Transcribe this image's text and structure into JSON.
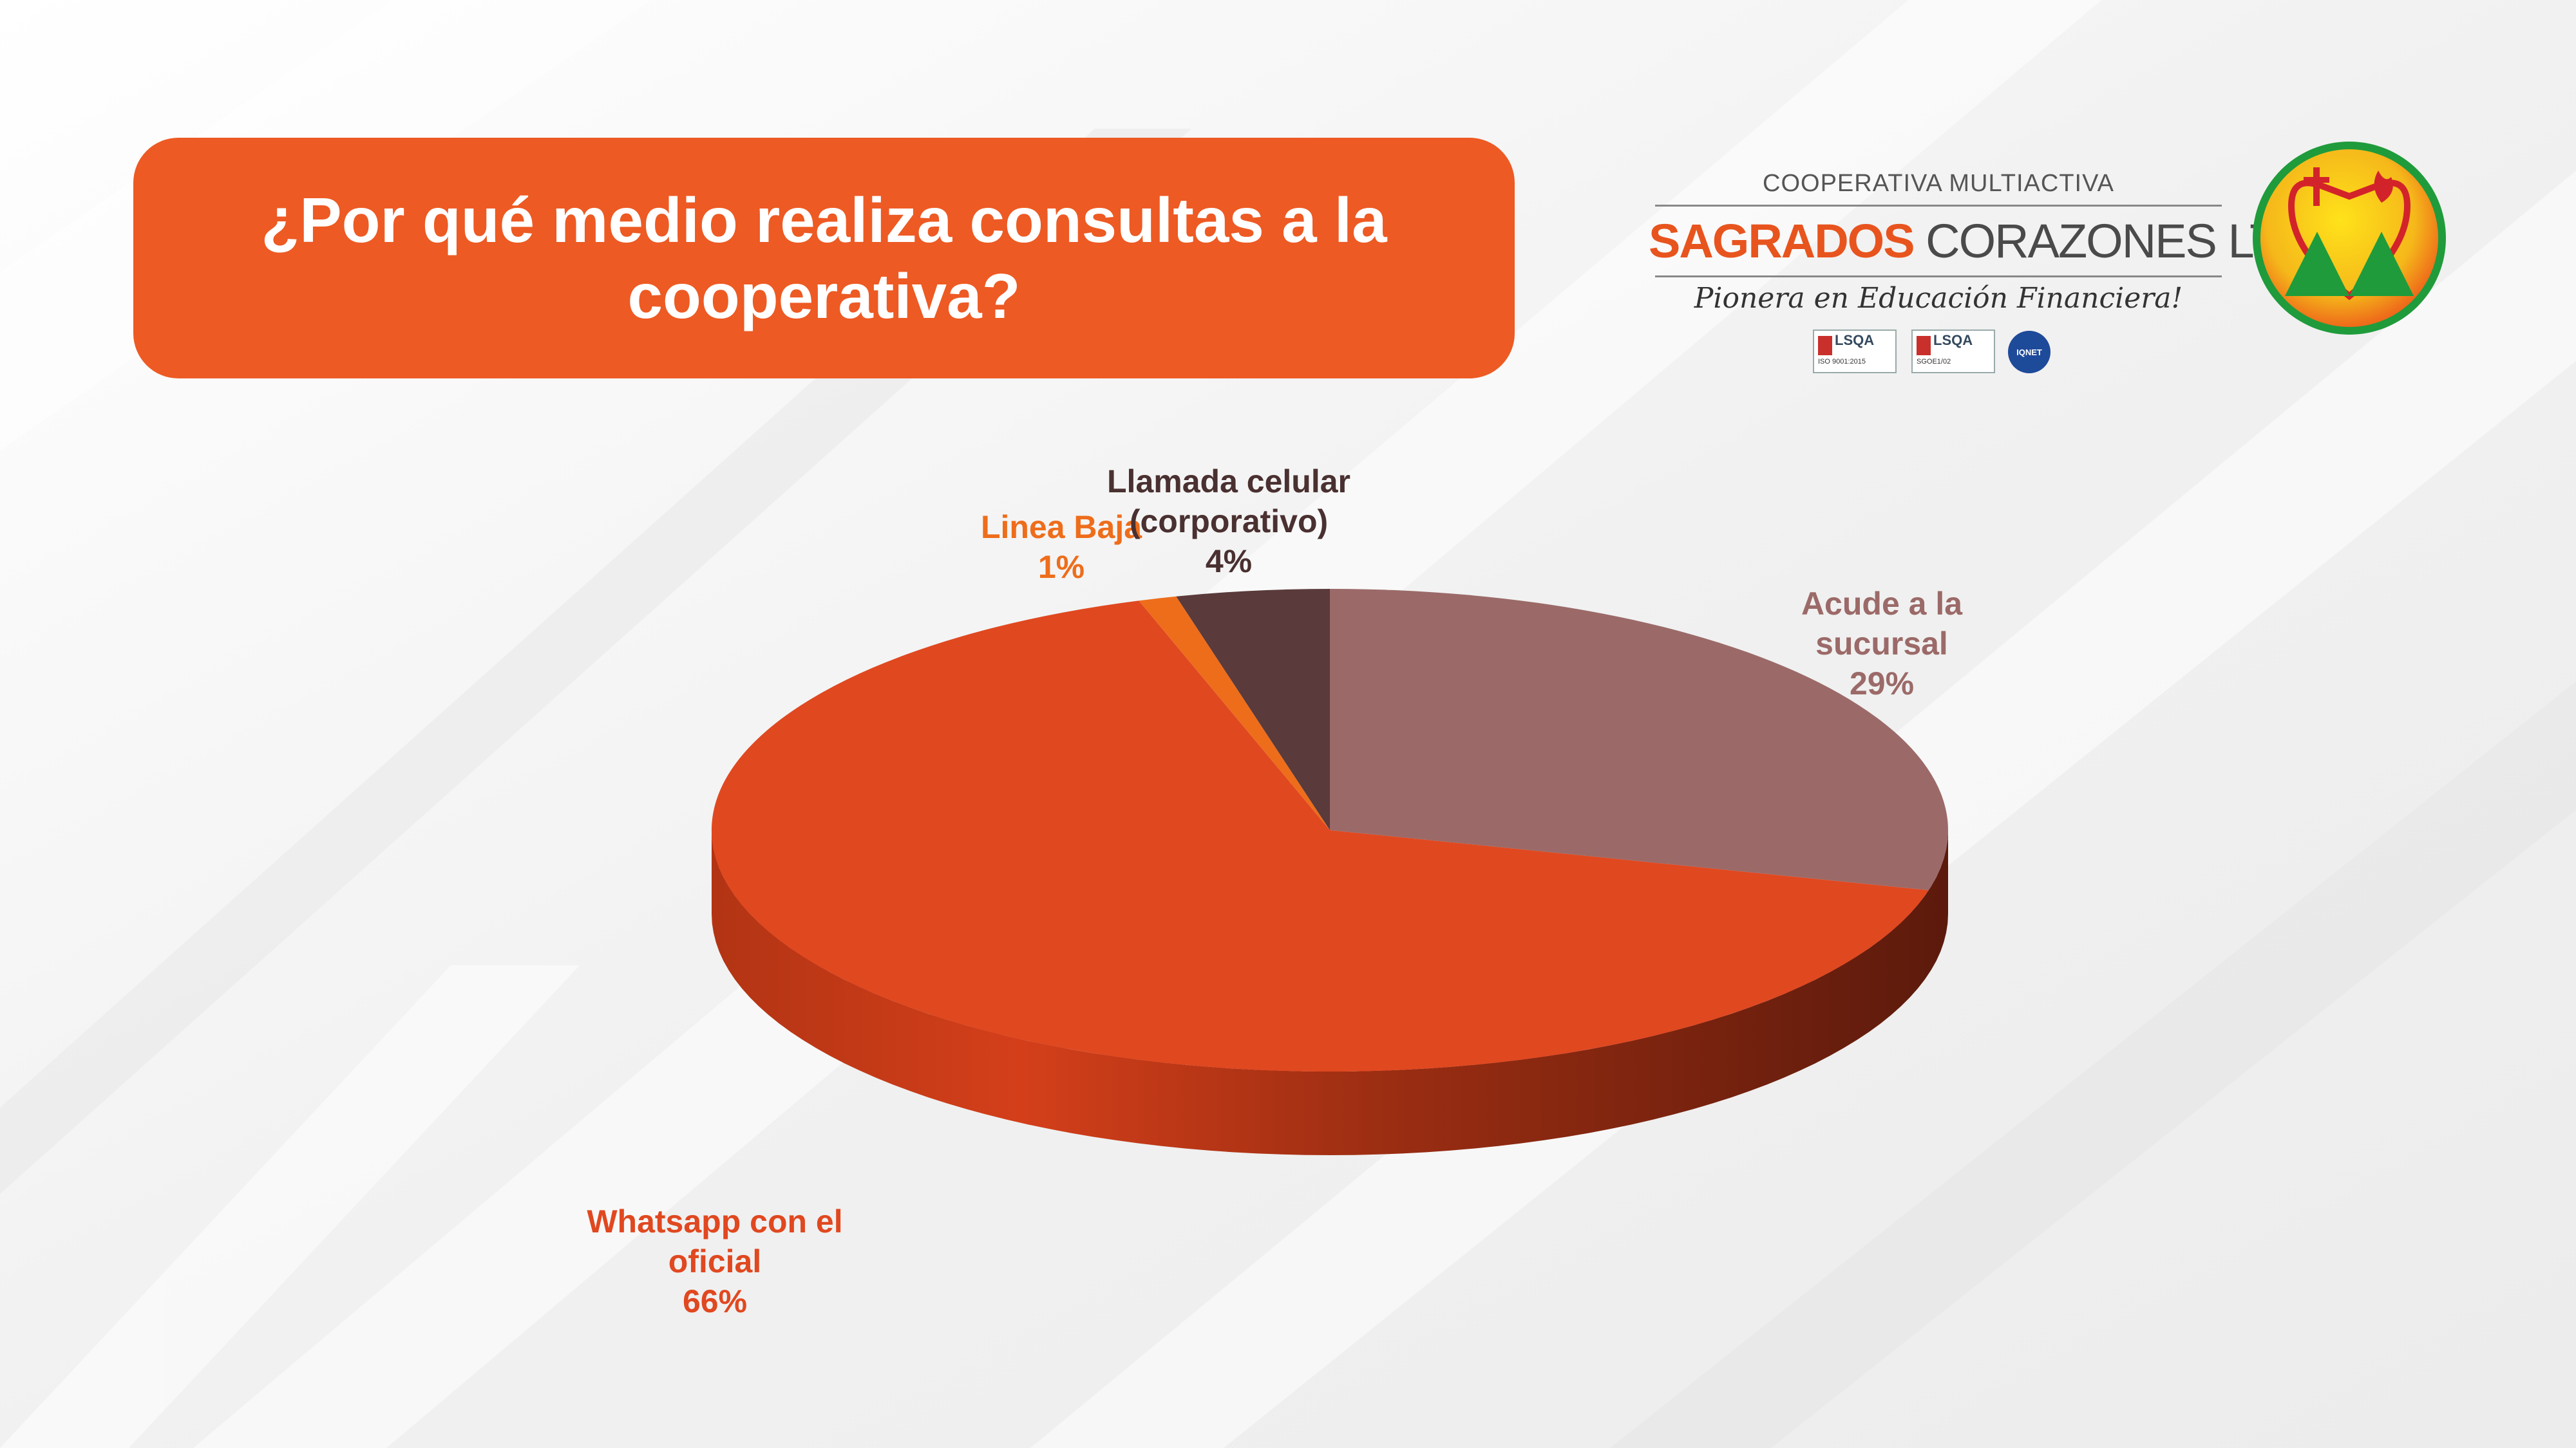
{
  "title": "¿Por qué medio realiza consultas a la cooperativa?",
  "logo": {
    "kicker": "COOPERATIVA MULTIACTIVA",
    "name_part1": "SAGRADOS",
    "name_part2": "CORAZONES LTDA.",
    "motto": "Pionera en Educación Financiera!",
    "cert1": {
      "brand": "LSQA",
      "code": "ISO 9001:2015"
    },
    "cert2": {
      "brand": "LSQA",
      "code": "SGOE1/02"
    },
    "network": "IQNET"
  },
  "colors": {
    "title_bg": "#ed5a23",
    "whatsapp": "#e04820",
    "sucursal": "#9b6a68",
    "celular": "#5a3a3a",
    "linea_baja": "#ee6d1b"
  },
  "chart_data": {
    "type": "pie",
    "title": "¿Por qué medio realiza consultas a la cooperativa?",
    "style": "3d",
    "slices": [
      {
        "label": "Acude a la sucursal",
        "value": 29,
        "display": "29%",
        "color": "#9b6a68"
      },
      {
        "label": "Whatsapp con el oficial",
        "value": 66,
        "display": "66%",
        "color": "#e04820"
      },
      {
        "label": "Linea Baja",
        "value": 1,
        "display": "1%",
        "color": "#ee6d1b"
      },
      {
        "label": "Llamada celular (corporativo)",
        "value": 4,
        "display": "4%",
        "color": "#5a3a3a"
      }
    ],
    "labels": {
      "sucursal": [
        "Acude a la",
        "sucursal",
        "29%"
      ],
      "whatsapp": [
        "Whatsapp con el",
        "oficial",
        "66%"
      ],
      "linea_baja": [
        "Linea Baja",
        "1%"
      ],
      "celular": [
        "Llamada celular",
        "(corporativo)",
        "4%"
      ]
    },
    "legend": "none"
  }
}
